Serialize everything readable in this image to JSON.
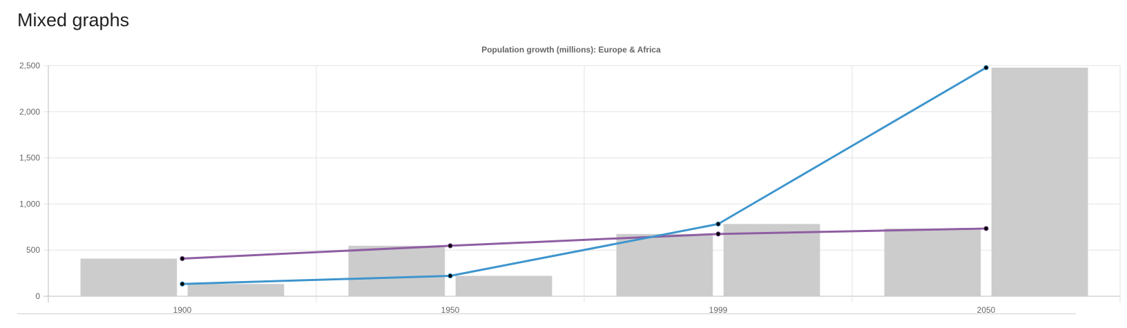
{
  "page": {
    "title": "Mixed graphs"
  },
  "chart_data": {
    "type": "bar",
    "title": "Population growth (millions): Europe & Africa",
    "xlabel": "",
    "ylabel": "",
    "categories": [
      "1900",
      "1950",
      "1999",
      "2050"
    ],
    "ylim": [
      0,
      2500
    ],
    "yticks": [
      0,
      500,
      1000,
      1500,
      2000,
      2500
    ],
    "ytick_labels": [
      "0",
      "500",
      "1,000",
      "1,500",
      "2,000",
      "2,500"
    ],
    "grid": true,
    "legend": "none",
    "series": [
      {
        "type": "bar",
        "values": [
          408,
          547,
          675,
          734
        ],
        "color": "#cccccc"
      },
      {
        "type": "bar",
        "values": [
          133,
          221,
          783,
          2478
        ],
        "color": "#cccccc"
      },
      {
        "type": "line",
        "values": [
          408,
          547,
          675,
          734
        ],
        "color": "#8e5ea2"
      },
      {
        "type": "line",
        "values": [
          133,
          221,
          783,
          2478
        ],
        "color": "#3e95cd"
      }
    ]
  }
}
